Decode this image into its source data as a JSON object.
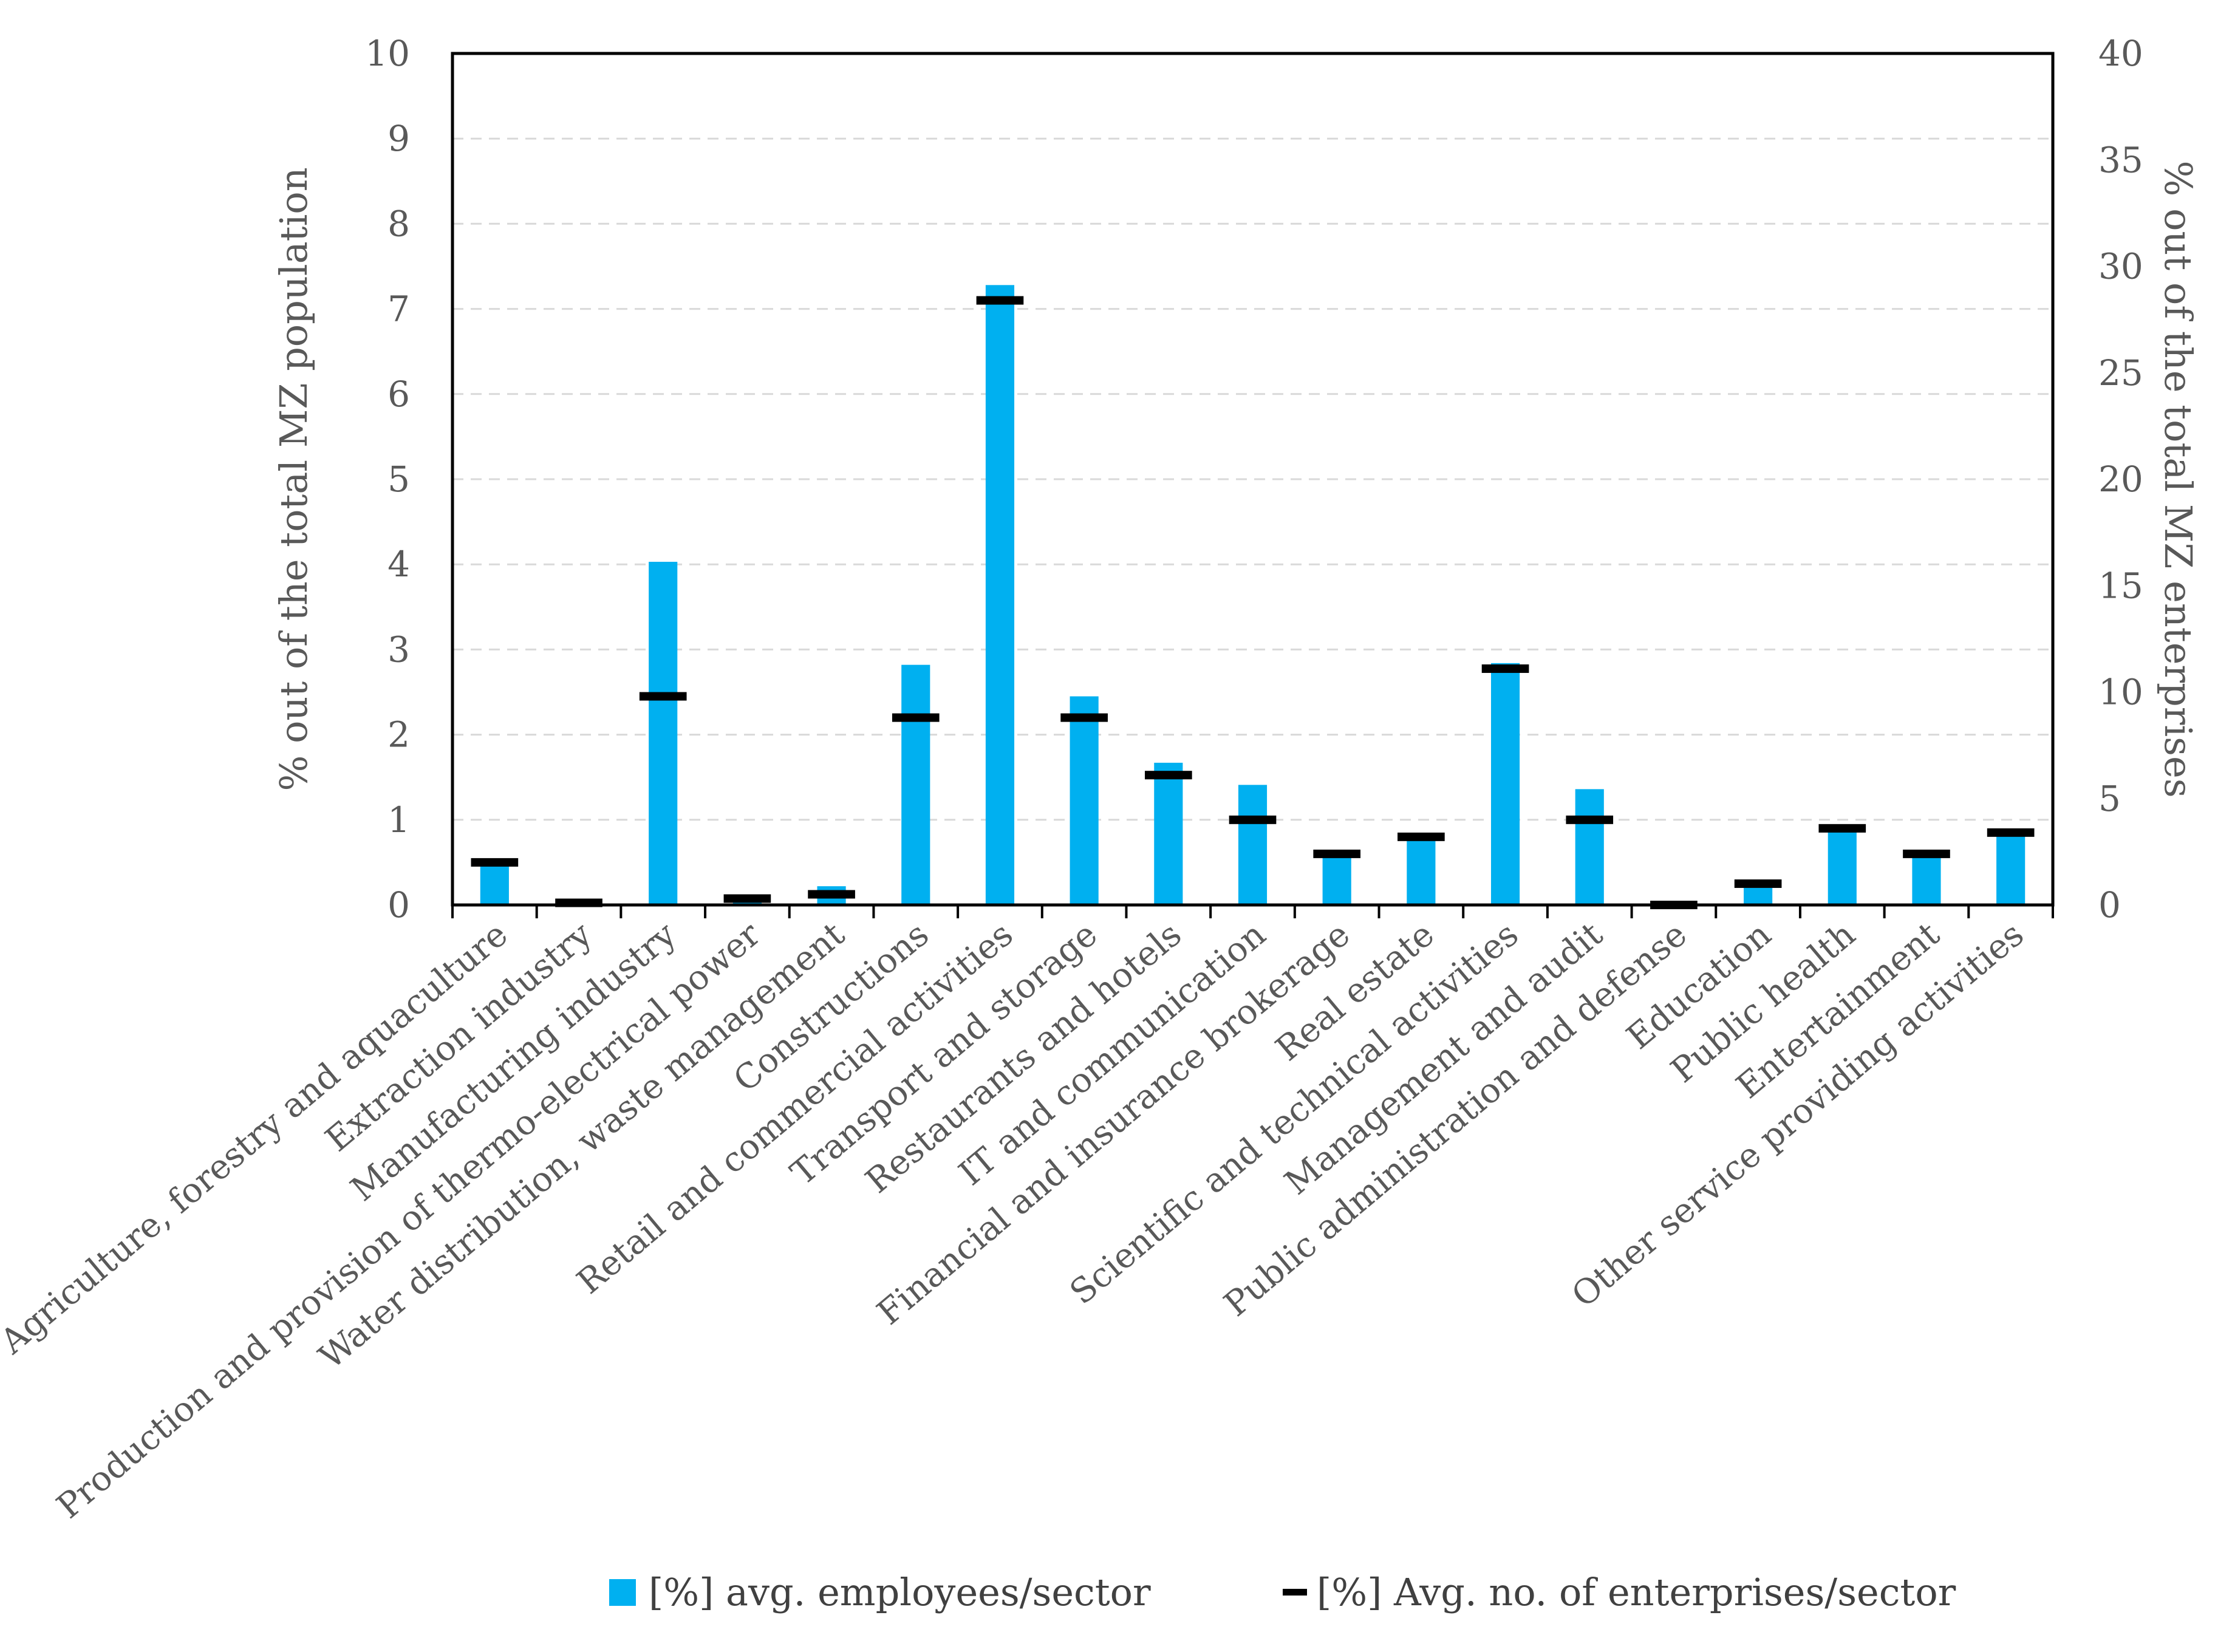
{
  "chart_data": {
    "type": "bar",
    "title": "",
    "categories": [
      "Agriculture, forestry and aquaculture",
      "Extraction industry",
      "Manufacturing industry",
      "Production and provision of thermo-electrical power",
      "Water distribution, waste management",
      "Constructions",
      "Retail and commercial activities",
      "Transport and storage",
      "Restaurants and hotels",
      "IT and communication",
      "Financial and insurance brokerage",
      "Real estate",
      "Scientific and technical activities",
      "Management and audit",
      "Public administration and defense",
      "Education",
      "Public health",
      "Entertainment",
      "Other service providing activities"
    ],
    "series": [
      {
        "name": "[%] avg. employees/sector",
        "axis": "left",
        "mark": "bar",
        "color": "#00b0f0",
        "values": [
          0.5,
          0.02,
          4.03,
          0.05,
          0.22,
          2.82,
          7.28,
          2.45,
          1.67,
          1.41,
          0.6,
          0.83,
          2.84,
          1.36,
          0.02,
          0.2,
          0.88,
          0.6,
          0.85
        ]
      },
      {
        "name": "[%] Avg. no. of enterprises/sector",
        "axis": "right",
        "mark": "dash",
        "color": "#000000",
        "values": [
          2.0,
          0.1,
          9.8,
          0.3,
          0.5,
          8.8,
          28.4,
          8.8,
          6.1,
          4.0,
          2.4,
          3.2,
          11.1,
          4.0,
          0.0,
          1.0,
          3.6,
          2.4,
          3.4
        ]
      }
    ],
    "ylabel": "% out of the total MZ population",
    "ylim": [
      0,
      10
    ],
    "yticks": [
      "0",
      "1",
      "2",
      "3",
      "4",
      "5",
      "6",
      "7",
      "8",
      "9",
      "10"
    ],
    "y2label": "% out of the total MZ enterprises",
    "y2lim": [
      0,
      40
    ],
    "y2ticks": [
      "0",
      "5",
      "10",
      "15",
      "20",
      "25",
      "30",
      "35",
      "40"
    ],
    "grid": true,
    "legend_position": "bottom"
  }
}
